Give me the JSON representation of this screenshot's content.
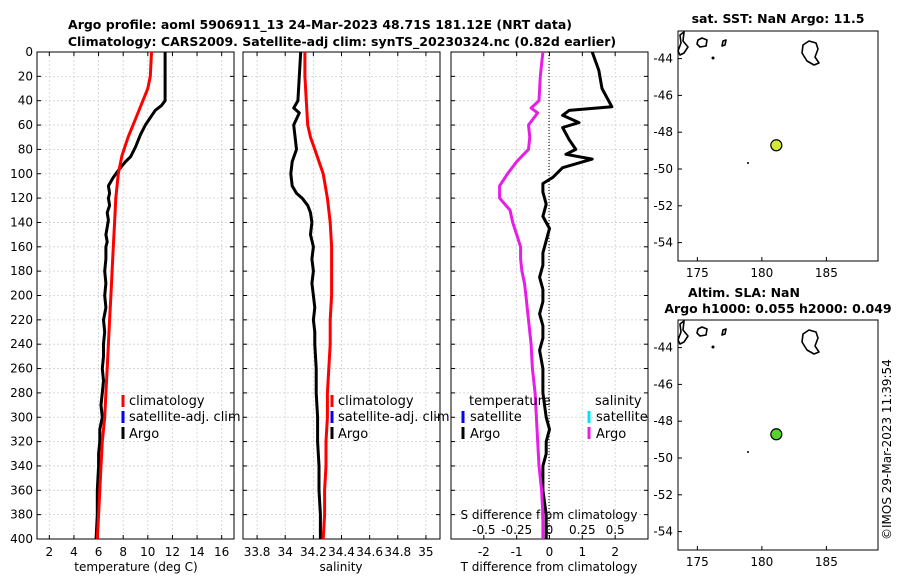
{
  "header": {
    "title_line1": "Argo profile: aoml 5906911_13 24-Mar-2023 48.71S 181.12E (NRT data)",
    "title_line2": "Climatology: CARS2009. Satellite-adj clim: synTS_20230324.nc (0.82d earlier)"
  },
  "copyright": "©IMOS 29-Mar-2023 11:39:54",
  "colors": {
    "argo": "#000000",
    "climatology": "#ff0000",
    "satellite_clim": "#0000ff",
    "satellite_salinity": "#00e5ff",
    "salinity_diff": "#e61ee6",
    "sst_marker": "#d4e83a",
    "sla_marker": "#58d22f"
  },
  "depth_axis": {
    "ticks": [
      "0",
      "20",
      "40",
      "60",
      "80",
      "100",
      "120",
      "140",
      "160",
      "180",
      "200",
      "220",
      "240",
      "260",
      "280",
      "300",
      "320",
      "340",
      "360",
      "380",
      "400"
    ],
    "range": [
      0,
      400
    ]
  },
  "chart_data": [
    {
      "id": "temperature",
      "type": "line",
      "xlabel": "temperature (deg C)",
      "ylabel": "depth",
      "xlim": [
        1,
        17
      ],
      "ylim": [
        400,
        0
      ],
      "xticks": [
        "2",
        "4",
        "6",
        "8",
        "10",
        "12",
        "14",
        "16"
      ],
      "legend": [
        "climatology",
        "satellite-adj. clim",
        "Argo"
      ],
      "series": [
        {
          "name": "Argo",
          "color": "#000000",
          "points": [
            [
              11.4,
              0
            ],
            [
              11.4,
              40
            ],
            [
              11.1,
              44
            ],
            [
              10.6,
              48
            ],
            [
              10.2,
              54
            ],
            [
              9.8,
              60
            ],
            [
              9.4,
              68
            ],
            [
              9.0,
              78
            ],
            [
              8.6,
              86
            ],
            [
              8.2,
              90
            ],
            [
              7.7,
              96
            ],
            [
              7.2,
              103
            ],
            [
              6.8,
              110
            ],
            [
              6.9,
              116
            ],
            [
              6.8,
              120
            ],
            [
              6.9,
              126
            ],
            [
              6.7,
              132
            ],
            [
              6.8,
              138
            ],
            [
              6.7,
              144
            ],
            [
              6.6,
              150
            ],
            [
              6.7,
              156
            ],
            [
              6.6,
              160
            ],
            [
              6.6,
              170
            ],
            [
              6.5,
              180
            ],
            [
              6.6,
              190
            ],
            [
              6.5,
              200
            ],
            [
              6.6,
              210
            ],
            [
              6.4,
              220
            ],
            [
              6.5,
              230
            ],
            [
              6.4,
              240
            ],
            [
              6.4,
              250
            ],
            [
              6.3,
              260
            ],
            [
              6.4,
              270
            ],
            [
              6.3,
              280
            ],
            [
              6.2,
              290
            ],
            [
              6.3,
              300
            ],
            [
              6.1,
              310
            ],
            [
              6.1,
              320
            ],
            [
              6.0,
              330
            ],
            [
              6.0,
              340
            ],
            [
              5.9,
              360
            ],
            [
              5.9,
              380
            ],
            [
              5.8,
              400
            ]
          ]
        },
        {
          "name": "climatology",
          "color": "#ff0000",
          "points": [
            [
              10.3,
              0
            ],
            [
              10.2,
              20
            ],
            [
              10.0,
              30
            ],
            [
              9.6,
              40
            ],
            [
              9.0,
              55
            ],
            [
              8.4,
              70
            ],
            [
              7.9,
              85
            ],
            [
              7.6,
              100
            ],
            [
              7.4,
              120
            ],
            [
              7.3,
              140
            ],
            [
              7.2,
              160
            ],
            [
              7.1,
              180
            ],
            [
              7.0,
              200
            ],
            [
              6.9,
              220
            ],
            [
              6.8,
              240
            ],
            [
              6.7,
              260
            ],
            [
              6.6,
              280
            ],
            [
              6.5,
              300
            ],
            [
              6.3,
              320
            ],
            [
              6.2,
              340
            ],
            [
              6.1,
              360
            ],
            [
              6.0,
              380
            ],
            [
              5.9,
              400
            ]
          ]
        }
      ]
    },
    {
      "id": "salinity",
      "type": "line",
      "xlabel": "salinity",
      "ylabel": "depth",
      "xlim": [
        33.7,
        35.1
      ],
      "ylim": [
        400,
        0
      ],
      "xticks": [
        "33.8",
        "34",
        "34.2",
        "34.4",
        "34.6",
        "34.8",
        "35"
      ],
      "legend": [
        "climatology",
        "satellite-adj. clim",
        "Argo"
      ],
      "series": [
        {
          "name": "Argo",
          "color": "#000000",
          "points": [
            [
              34.11,
              0
            ],
            [
              34.1,
              20
            ],
            [
              34.09,
              40
            ],
            [
              34.06,
              46
            ],
            [
              34.1,
              50
            ],
            [
              34.06,
              60
            ],
            [
              34.07,
              70
            ],
            [
              34.08,
              80
            ],
            [
              34.05,
              90
            ],
            [
              34.04,
              100
            ],
            [
              34.05,
              110
            ],
            [
              34.08,
              116
            ],
            [
              34.12,
              120
            ],
            [
              34.16,
              126
            ],
            [
              34.18,
              132
            ],
            [
              34.19,
              140
            ],
            [
              34.18,
              150
            ],
            [
              34.2,
              160
            ],
            [
              34.19,
              170
            ],
            [
              34.2,
              180
            ],
            [
              34.19,
              190
            ],
            [
              34.2,
              200
            ],
            [
              34.21,
              210
            ],
            [
              34.2,
              220
            ],
            [
              34.21,
              230
            ],
            [
              34.21,
              240
            ],
            [
              34.22,
              260
            ],
            [
              34.22,
              280
            ],
            [
              34.23,
              300
            ],
            [
              34.23,
              320
            ],
            [
              34.24,
              340
            ],
            [
              34.24,
              360
            ],
            [
              34.25,
              380
            ],
            [
              34.25,
              400
            ]
          ]
        },
        {
          "name": "climatology",
          "color": "#ff0000",
          "points": [
            [
              34.14,
              0
            ],
            [
              34.14,
              20
            ],
            [
              34.15,
              40
            ],
            [
              34.16,
              60
            ],
            [
              34.18,
              70
            ],
            [
              34.21,
              80
            ],
            [
              34.24,
              90
            ],
            [
              34.27,
              100
            ],
            [
              34.3,
              120
            ],
            [
              34.32,
              140
            ],
            [
              34.33,
              160
            ],
            [
              34.33,
              180
            ],
            [
              34.33,
              200
            ],
            [
              34.32,
              220
            ],
            [
              34.32,
              240
            ],
            [
              34.31,
              260
            ],
            [
              34.3,
              280
            ],
            [
              34.3,
              300
            ],
            [
              34.29,
              320
            ],
            [
              34.29,
              340
            ],
            [
              34.28,
              360
            ],
            [
              34.28,
              380
            ],
            [
              34.27,
              400
            ]
          ]
        }
      ]
    },
    {
      "id": "differences",
      "type": "line",
      "xlabel": "T difference from climatology",
      "xlabel_top": "S difference from climatology",
      "xlim": [
        -3,
        3
      ],
      "ylim": [
        400,
        0
      ],
      "xticks": [
        "-2",
        "-1",
        "0",
        "1",
        "2"
      ],
      "xticks_top": [
        "-0.5",
        "-0.25",
        "0",
        "0.25",
        "0.5"
      ],
      "legend_title_left": "temperature",
      "legend_title_right": "salinity",
      "legend_left": [
        "satellite",
        "Argo"
      ],
      "legend_right": [
        "satellite",
        "Argo"
      ],
      "series": [
        {
          "name": "Argo temperature difference",
          "color": "#000000",
          "points": [
            [
              1.3,
              0
            ],
            [
              1.5,
              15
            ],
            [
              1.6,
              30
            ],
            [
              1.9,
              45
            ],
            [
              0.6,
              48
            ],
            [
              0.4,
              52
            ],
            [
              0.9,
              58
            ],
            [
              0.4,
              62
            ],
            [
              0.6,
              72
            ],
            [
              0.8,
              80
            ],
            [
              0.5,
              84
            ],
            [
              1.3,
              88
            ],
            [
              0.4,
              95
            ],
            [
              0.1,
              103
            ],
            [
              -0.2,
              108
            ],
            [
              -0.2,
              115
            ],
            [
              -0.1,
              125
            ],
            [
              -0.2,
              135
            ],
            [
              0.0,
              145
            ],
            [
              -0.1,
              155
            ],
            [
              -0.2,
              165
            ],
            [
              -0.2,
              175
            ],
            [
              -0.3,
              185
            ],
            [
              -0.2,
              195
            ],
            [
              -0.2,
              205
            ],
            [
              -0.3,
              215
            ],
            [
              -0.2,
              225
            ],
            [
              -0.2,
              235
            ],
            [
              -0.3,
              245
            ],
            [
              -0.2,
              260
            ],
            [
              -0.2,
              280
            ],
            [
              -0.1,
              300
            ],
            [
              0.0,
              310
            ],
            [
              -0.1,
              320
            ],
            [
              -0.1,
              330
            ],
            [
              -0.2,
              340
            ],
            [
              -0.2,
              360
            ],
            [
              -0.1,
              380
            ],
            [
              -0.1,
              400
            ]
          ]
        },
        {
          "name": "Argo salinity difference",
          "color": "#e61ee6",
          "points": [
            [
              -0.05,
              0
            ],
            [
              -0.07,
              20
            ],
            [
              -0.08,
              40
            ],
            [
              -0.14,
              46
            ],
            [
              -0.09,
              50
            ],
            [
              -0.16,
              60
            ],
            [
              -0.15,
              70
            ],
            [
              -0.16,
              80
            ],
            [
              -0.25,
              90
            ],
            [
              -0.32,
              100
            ],
            [
              -0.38,
              110
            ],
            [
              -0.38,
              120
            ],
            [
              -0.3,
              130
            ],
            [
              -0.28,
              140
            ],
            [
              -0.25,
              150
            ],
            [
              -0.22,
              160
            ],
            [
              -0.22,
              170
            ],
            [
              -0.21,
              180
            ],
            [
              -0.19,
              190
            ],
            [
              -0.18,
              200
            ],
            [
              -0.17,
              210
            ],
            [
              -0.16,
              220
            ],
            [
              -0.15,
              230
            ],
            [
              -0.14,
              240
            ],
            [
              -0.13,
              260
            ],
            [
              -0.11,
              280
            ],
            [
              -0.1,
              300
            ],
            [
              -0.09,
              320
            ],
            [
              -0.08,
              340
            ],
            [
              -0.06,
              360
            ],
            [
              -0.05,
              380
            ],
            [
              -0.05,
              400
            ]
          ]
        }
      ]
    },
    {
      "id": "map_sst",
      "type": "scatter",
      "title": "sat. SST: NaN Argo: 11.5",
      "xlim": [
        173.5,
        189
      ],
      "ylim": [
        -55,
        -42.5
      ],
      "xticks": [
        "175",
        "180",
        "185"
      ],
      "yticks": [
        "-44",
        "-46",
        "-48",
        "-50",
        "-52",
        "-54"
      ],
      "point": {
        "lon": 181.12,
        "lat": -48.71,
        "color": "#d4e83a"
      }
    },
    {
      "id": "map_sla",
      "type": "scatter",
      "title": "Altim. SLA: NaN",
      "subtitle": "Argo h1000: 0.055 h2000: 0.049",
      "xlim": [
        173.5,
        189
      ],
      "ylim": [
        -55,
        -42.5
      ],
      "xticks": [
        "175",
        "180",
        "185"
      ],
      "yticks": [
        "-44",
        "-46",
        "-48",
        "-50",
        "-52",
        "-54"
      ],
      "point": {
        "lon": 181.12,
        "lat": -48.71,
        "color": "#58d22f"
      }
    }
  ]
}
